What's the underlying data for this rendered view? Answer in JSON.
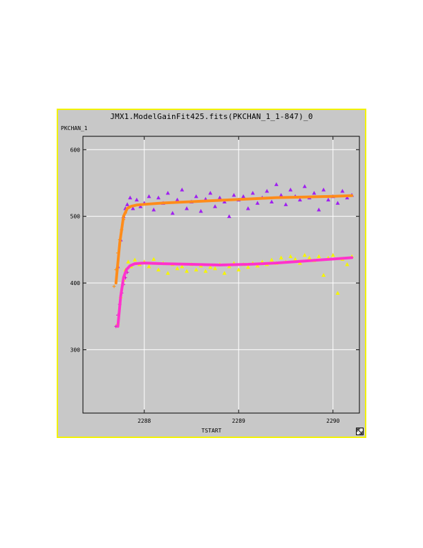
{
  "window": {
    "title": "JMX1.ModelGainFit425.fits(PKCHAN_1_1-847)_0"
  },
  "icons": {
    "resize": "resize-corner-icon"
  },
  "chart_data": {
    "type": "scatter",
    "title": "JMX1.ModelGainFit425.fits(PKCHAN_1_1-847)_0",
    "xlabel": "TSTART",
    "ylabel": "PKCHAN_1",
    "xlim": [
      2287.35,
      2290.28
    ],
    "ylim": [
      205,
      620
    ],
    "xticks": [
      2288,
      2289,
      2290
    ],
    "yticks": [
      300,
      400,
      500,
      600
    ],
    "grid": true,
    "background": "#c8c8c8",
    "series": [
      {
        "kind": "triangles",
        "color": "#a020f0",
        "x": [
          2287.72,
          2287.75,
          2287.78,
          2287.8,
          2287.82,
          2287.85,
          2287.88,
          2287.92,
          2287.96,
          2288.0,
          2288.05,
          2288.1,
          2288.15,
          2288.2,
          2288.25,
          2288.3,
          2288.35,
          2288.4,
          2288.45,
          2288.5,
          2288.55,
          2288.6,
          2288.65,
          2288.7,
          2288.75,
          2288.8,
          2288.85,
          2288.9,
          2288.95,
          2289.0,
          2289.05,
          2289.1,
          2289.15,
          2289.2,
          2289.25,
          2289.3,
          2289.35,
          2289.4,
          2289.45,
          2289.5,
          2289.55,
          2289.6,
          2289.65,
          2289.7,
          2289.75,
          2289.8,
          2289.85,
          2289.9,
          2289.95,
          2290.0,
          2290.05,
          2290.1,
          2290.15,
          2290.2
        ],
        "y": [
          425,
          465,
          500,
          512,
          518,
          528,
          512,
          525,
          515,
          520,
          530,
          510,
          528,
          520,
          535,
          505,
          525,
          540,
          512,
          522,
          530,
          508,
          526,
          535,
          515,
          528,
          522,
          500,
          532,
          525,
          530,
          512,
          535,
          520,
          528,
          538,
          522,
          548,
          532,
          518,
          540,
          530,
          525,
          545,
          528,
          535,
          510,
          540,
          525,
          530,
          520,
          538,
          528,
          532
        ]
      },
      {
        "kind": "triangles",
        "color": "#f5f500",
        "x": [
          2287.72,
          2287.75,
          2287.78,
          2287.8,
          2287.83,
          2287.86,
          2287.9,
          2287.95,
          2288.0,
          2288.05,
          2288.1,
          2288.15,
          2288.2,
          2288.25,
          2288.3,
          2288.35,
          2288.4,
          2288.45,
          2288.5,
          2288.55,
          2288.6,
          2288.65,
          2288.7,
          2288.75,
          2288.8,
          2288.85,
          2288.9,
          2288.95,
          2289.0,
          2289.05,
          2289.1,
          2289.15,
          2289.2,
          2289.25,
          2289.3,
          2289.35,
          2289.4,
          2289.45,
          2289.5,
          2289.55,
          2289.6,
          2289.65,
          2289.7,
          2289.75,
          2289.8,
          2289.85,
          2289.9,
          2289.95,
          2290.0,
          2290.05,
          2290.1,
          2290.15,
          2290.2
        ],
        "y": [
          340,
          380,
          405,
          420,
          432,
          425,
          435,
          428,
          432,
          425,
          436,
          420,
          430,
          415,
          428,
          422,
          425,
          418,
          428,
          420,
          426,
          418,
          424,
          422,
          428,
          415,
          425,
          430,
          420,
          428,
          424,
          430,
          426,
          432,
          428,
          435,
          430,
          438,
          432,
          440,
          436,
          430,
          442,
          438,
          434,
          440,
          412,
          438,
          442,
          385,
          436,
          428,
          440
        ]
      },
      {
        "kind": "crosses",
        "color": "#ff8c00",
        "x": [
          2287.68,
          2287.7,
          2287.72,
          2287.74,
          2287.76,
          2287.78,
          2287.8
        ],
        "y": [
          395,
          420,
          445,
          465,
          480,
          495,
          505
        ]
      },
      {
        "kind": "crosses",
        "color": "#e000c8",
        "x": [
          2287.7,
          2287.72,
          2287.74,
          2287.76,
          2287.78,
          2287.8,
          2287.82
        ],
        "y": [
          335,
          352,
          368,
          385,
          398,
          408,
          416
        ]
      },
      {
        "kind": "line",
        "color": "#ff8c1a",
        "x": [
          2287.7,
          2287.74,
          2287.78,
          2287.82,
          2287.86,
          2287.92,
          2288.0,
          2288.2,
          2288.5,
          2288.8,
          2289.1,
          2289.4,
          2289.7,
          2290.0,
          2290.2
        ],
        "y": [
          400,
          460,
          500,
          512,
          515,
          517,
          518,
          520,
          522,
          524,
          526,
          528,
          529,
          530,
          531
        ]
      },
      {
        "kind": "line",
        "color": "#ff33cc",
        "x": [
          2287.72,
          2287.75,
          2287.78,
          2287.81,
          2287.85,
          2287.9,
          2288.0,
          2288.2,
          2288.5,
          2288.8,
          2289.1,
          2289.4,
          2289.7,
          2290.0,
          2290.2
        ],
        "y": [
          335,
          380,
          408,
          420,
          426,
          429,
          430,
          429,
          428,
          427,
          428,
          430,
          433,
          436,
          438
        ]
      }
    ]
  }
}
